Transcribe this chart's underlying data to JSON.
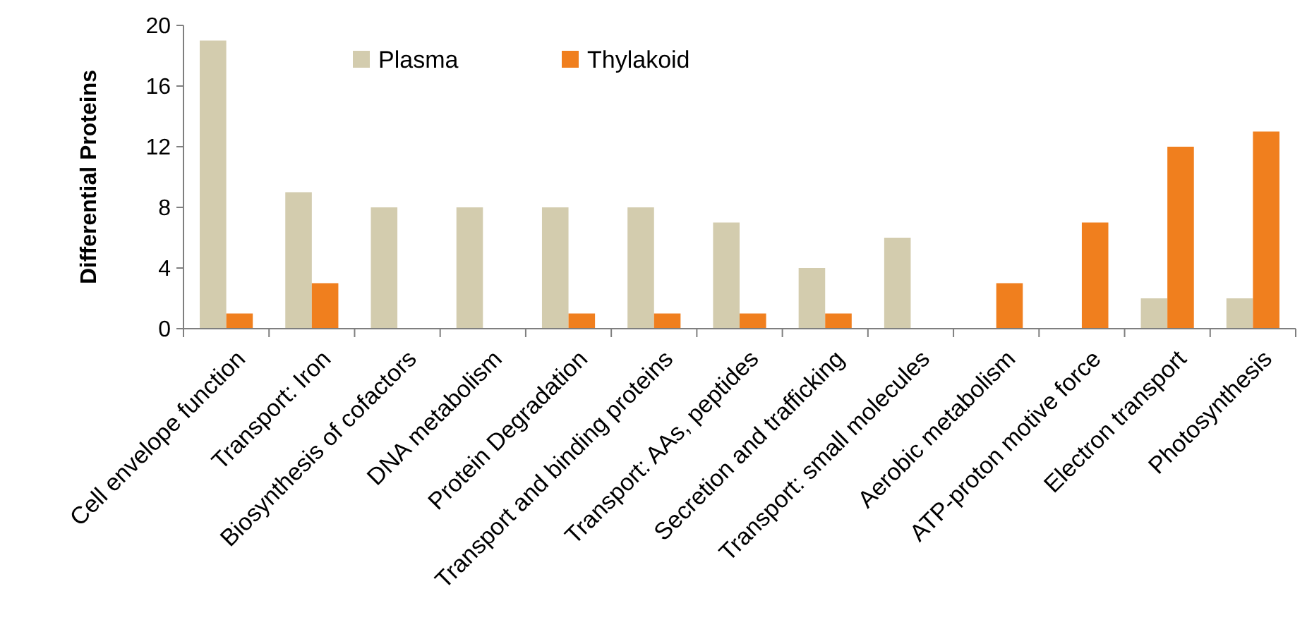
{
  "chart_data": {
    "type": "bar",
    "ylabel": "Differential Proteins",
    "categories": [
      "Cell envelope function",
      "Transport: Iron",
      "Biosynthesis of cofactors",
      "DNA metabolism",
      "Protein Degradation",
      "Transport and binding proteins",
      "Transport: AAs, peptides",
      "Secretion and trafficking",
      "Transport: small molecules",
      "Aerobic metabolism",
      "ATP-proton motive force",
      "Electron transport",
      "Photosynthesis"
    ],
    "series": [
      {
        "name": "Plasma",
        "color": "#d3ccae",
        "values": [
          19,
          9,
          8,
          8,
          8,
          8,
          7,
          4,
          6,
          0,
          0,
          2,
          2
        ]
      },
      {
        "name": "Thylakoid",
        "color": "#f07f1e",
        "values": [
          1,
          3,
          0,
          0,
          1,
          1,
          1,
          1,
          0,
          3,
          7,
          12,
          13
        ]
      }
    ],
    "ylim": [
      0,
      20
    ],
    "yticks": [
      0,
      4,
      8,
      12,
      16,
      20
    ],
    "grid": false,
    "legend": "top"
  }
}
